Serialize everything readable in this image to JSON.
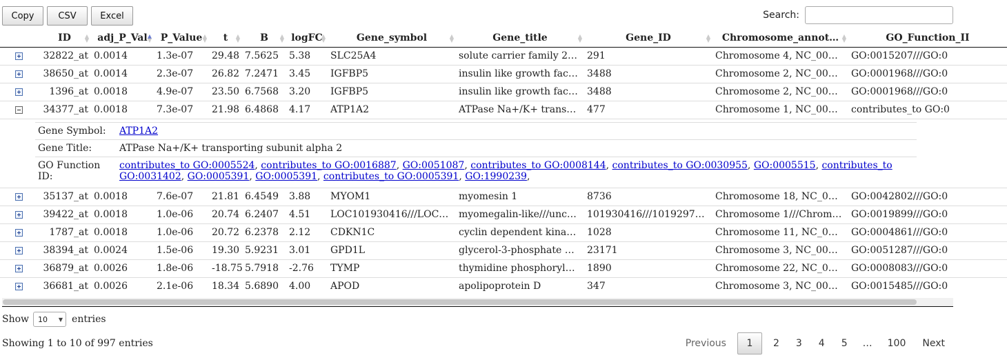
{
  "toolbar": {
    "copy": "Copy",
    "csv": "CSV",
    "excel": "Excel"
  },
  "search": {
    "label": "Search:",
    "value": ""
  },
  "columns": [
    "",
    "ID",
    "adj_P_Val",
    "P_Value",
    "t",
    "B",
    "logFC",
    "Gene_symbol",
    "Gene_title",
    "Gene_ID",
    "Chromosome_annot…",
    "GO_Function_II"
  ],
  "sort": {
    "column": "adj_P_Val",
    "direction": "ascending"
  },
  "rows": [
    {
      "expanded": false,
      "id": "32822_at",
      "adj": "0.0014",
      "p": "1.3e-07",
      "t": "29.48",
      "b": "7.5625",
      "lfc": "5.38",
      "sym": "SLC25A4",
      "title": "solute carrier family 2…",
      "gid": "291",
      "chrom": "Chromosome 4, NC_00…",
      "go": "GO:0015207///GO:0"
    },
    {
      "expanded": false,
      "id": "38650_at",
      "adj": "0.0014",
      "p": "2.3e-07",
      "t": "26.82",
      "b": "7.2471",
      "lfc": "3.45",
      "sym": "IGFBP5",
      "title": "insulin like growth fac…",
      "gid": "3488",
      "chrom": "Chromosome 2, NC_00…",
      "go": "GO:0001968///GO:0"
    },
    {
      "expanded": false,
      "id": "1396_at",
      "adj": "0.0018",
      "p": "4.9e-07",
      "t": "23.50",
      "b": "6.7568",
      "lfc": "3.20",
      "sym": "IGFBP5",
      "title": "insulin like growth fac…",
      "gid": "3488",
      "chrom": "Chromosome 2, NC_00…",
      "go": "GO:0001968///GO:0"
    },
    {
      "expanded": true,
      "id": "34377_at",
      "adj": "0.0018",
      "p": "7.3e-07",
      "t": "21.98",
      "b": "6.4868",
      "lfc": "4.17",
      "sym": "ATP1A2",
      "title": "ATPase Na+/K+ trans…",
      "gid": "477",
      "chrom": "Chromosome 1, NC_00…",
      "go": "contributes_to GO:0"
    },
    {
      "expanded": false,
      "id": "35137_at",
      "adj": "0.0018",
      "p": "7.6e-07",
      "t": "21.81",
      "b": "6.4549",
      "lfc": "3.88",
      "sym": "MYOM1",
      "title": "myomesin 1",
      "gid": "8736",
      "chrom": "Chromosome 18, NC_0…",
      "go": "GO:0042802///GO:0"
    },
    {
      "expanded": false,
      "id": "39422_at",
      "adj": "0.0018",
      "p": "1.0e-06",
      "t": "20.74",
      "b": "6.2407",
      "lfc": "4.51",
      "sym": "LOC101930416///LOC…",
      "title": "myomegalin-like///unc…",
      "gid": "101930416///1019297…",
      "chrom": "Chromosome 1///Chrom…",
      "go": "GO:0019899///GO:0"
    },
    {
      "expanded": false,
      "id": "1787_at",
      "adj": "0.0018",
      "p": "1.0e-06",
      "t": "20.72",
      "b": "6.2378",
      "lfc": "2.12",
      "sym": "CDKN1C",
      "title": "cyclin dependent kina…",
      "gid": "1028",
      "chrom": "Chromosome 11, NC_0…",
      "go": "GO:0004861///GO:0"
    },
    {
      "expanded": false,
      "id": "38394_at",
      "adj": "0.0024",
      "p": "1.5e-06",
      "t": "19.30",
      "b": "5.9231",
      "lfc": "3.01",
      "sym": "GPD1L",
      "title": "glycerol-3-phosphate …",
      "gid": "23171",
      "chrom": "Chromosome 3, NC_00…",
      "go": "GO:0051287///GO:0"
    },
    {
      "expanded": false,
      "id": "36879_at",
      "adj": "0.0026",
      "p": "1.8e-06",
      "t": "-18.75",
      "b": "5.7918",
      "lfc": "-2.76",
      "sym": "TYMP",
      "title": "thymidine phosphoryl…",
      "gid": "1890",
      "chrom": "Chromosome 22, NC_0…",
      "go": "GO:0008083///GO:0"
    },
    {
      "expanded": false,
      "id": "36681_at",
      "adj": "0.0026",
      "p": "2.1e-06",
      "t": "18.34",
      "b": "5.6890",
      "lfc": "4.00",
      "sym": "APOD",
      "title": "apolipoprotein D",
      "gid": "347",
      "chrom": "Chromosome 3, NC_00…",
      "go": "GO:0015485///GO:0"
    }
  ],
  "detail": {
    "symbol_label": "Gene Symbol:",
    "symbol_value": "ATP1A2",
    "title_label": "Gene Title:",
    "title_value": "ATPase Na+/K+ transporting subunit alpha 2",
    "go_label": "GO Function ID:",
    "go_links": [
      "contributes_to GO:0005524",
      "contributes_to GO:0016887",
      "GO:0051087",
      "contributes_to GO:0008144",
      "contributes_to GO:0030955",
      "GO:0005515",
      "contributes_to GO:0031402",
      "GO:0005391",
      "GO:0005391",
      "contributes_to GO:0005391",
      "GO:1990239"
    ]
  },
  "length": {
    "show": "Show",
    "value": "10",
    "entries": "entries"
  },
  "info": "Showing 1 to 10 of 997 entries",
  "pager": {
    "previous": "Previous",
    "pages": [
      "1",
      "2",
      "3",
      "4",
      "5"
    ],
    "ellipsis": "…",
    "last": "100",
    "next": "Next",
    "current": "1"
  }
}
